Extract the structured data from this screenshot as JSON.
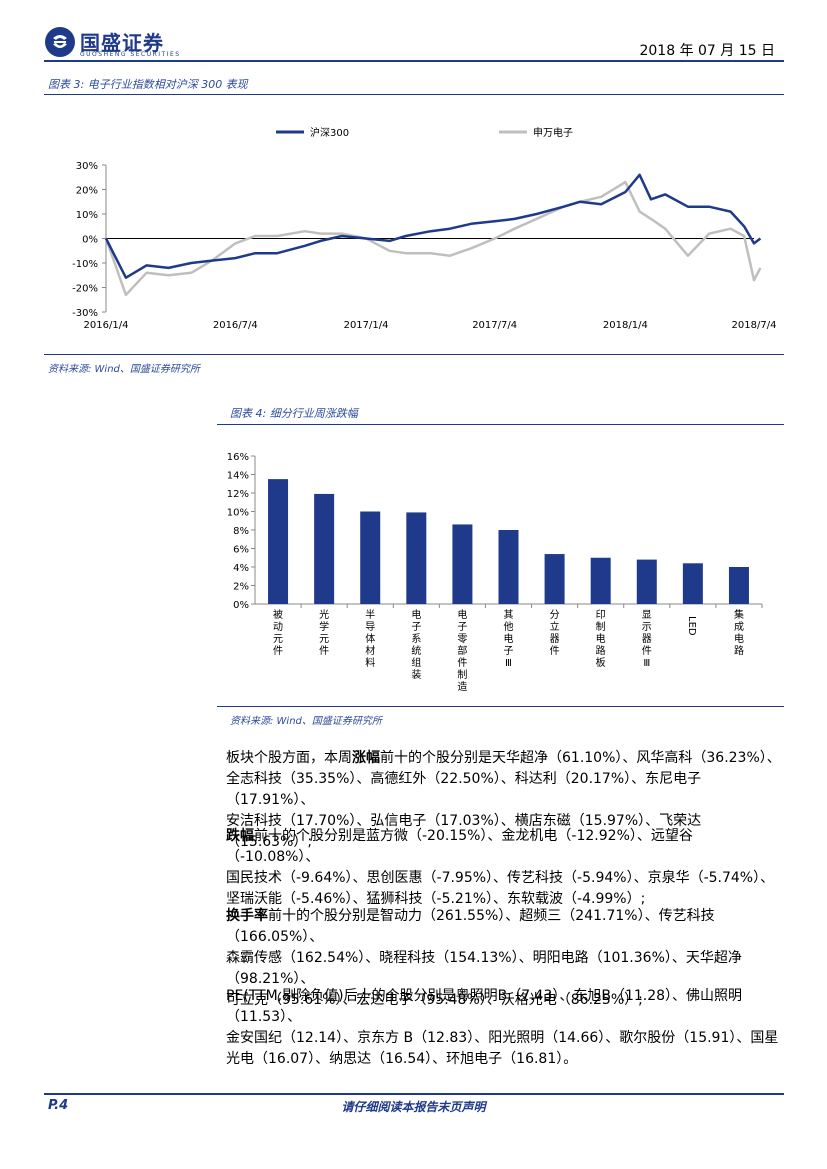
{
  "header": {
    "company_name": "国盛证券",
    "company_sub": "GUOSHENG SECURITIES",
    "date": "2018 年 07 月 15 日"
  },
  "figure3": {
    "caption": "图表 3: 电子行业指数相对沪深 300 表现",
    "source": "资料来源: Wind、国盛证券研究所"
  },
  "figure4": {
    "caption": "图表 4: 细分行业周涨跌幅",
    "source": "资料来源: Wind、国盛证券研究所"
  },
  "chart_data": [
    {
      "type": "line",
      "legend_position": "top",
      "ylim": [
        -0.3,
        0.3
      ],
      "yticks": [
        "30%",
        "20%",
        "10%",
        "0%",
        "-10%",
        "-20%",
        "-30%"
      ],
      "xticks": [
        "2016/1/4",
        "2016/7/4",
        "2017/1/4",
        "2017/7/4",
        "2018/1/4",
        "2018/7/4"
      ],
      "colors": {
        "hs300": "#1f3a8a",
        "sw": "#bfbfbf"
      },
      "series": [
        {
          "name": "沪深300",
          "x": [
            "2016/1/4",
            "2016/2/1",
            "2016/3/1",
            "2016/4/1",
            "2016/5/3",
            "2016/6/1",
            "2016/7/4",
            "2016/8/1",
            "2016/9/1",
            "2016/10/10",
            "2016/11/1",
            "2016/12/1",
            "2017/1/4",
            "2017/2/6",
            "2017/3/1",
            "2017/4/5",
            "2017/5/2",
            "2017/6/1",
            "2017/7/4",
            "2017/8/1",
            "2017/9/1",
            "2017/10/9",
            "2017/11/1",
            "2017/12/1",
            "2018/1/4",
            "2018/1/24",
            "2018/2/9",
            "2018/3/1",
            "2018/4/2",
            "2018/5/2",
            "2018/6/1",
            "2018/6/20",
            "2018/7/4",
            "2018/7/13"
          ],
          "values": [
            0.0,
            -0.16,
            -0.11,
            -0.12,
            -0.1,
            -0.09,
            -0.08,
            -0.06,
            -0.06,
            -0.03,
            -0.01,
            0.01,
            0.0,
            -0.01,
            0.01,
            0.03,
            0.04,
            0.06,
            0.07,
            0.08,
            0.1,
            0.13,
            0.15,
            0.14,
            0.19,
            0.26,
            0.16,
            0.18,
            0.13,
            0.13,
            0.11,
            0.05,
            -0.02,
            0.0
          ]
        },
        {
          "name": "申万电子",
          "x": [
            "2016/1/4",
            "2016/2/1",
            "2016/3/1",
            "2016/4/1",
            "2016/5/3",
            "2016/6/1",
            "2016/7/4",
            "2016/8/1",
            "2016/9/1",
            "2016/10/10",
            "2016/11/1",
            "2016/12/1",
            "2017/1/4",
            "2017/2/6",
            "2017/3/1",
            "2017/4/5",
            "2017/5/2",
            "2017/6/1",
            "2017/7/4",
            "2017/8/1",
            "2017/9/1",
            "2017/10/9",
            "2017/11/1",
            "2017/12/1",
            "2018/1/4",
            "2018/1/24",
            "2018/2/9",
            "2018/3/1",
            "2018/4/2",
            "2018/5/2",
            "2018/6/1",
            "2018/6/20",
            "2018/7/4",
            "2018/7/13"
          ],
          "values": [
            0.0,
            -0.23,
            -0.14,
            -0.15,
            -0.14,
            -0.09,
            -0.02,
            0.01,
            0.01,
            0.03,
            0.02,
            0.02,
            0.0,
            -0.05,
            -0.06,
            -0.06,
            -0.07,
            -0.04,
            0.0,
            0.04,
            0.08,
            0.13,
            0.15,
            0.17,
            0.23,
            0.11,
            0.08,
            0.04,
            -0.07,
            0.02,
            0.04,
            0.01,
            -0.17,
            -0.12
          ]
        }
      ]
    },
    {
      "type": "bar",
      "ylim": [
        0,
        0.16
      ],
      "yticks": [
        "16%",
        "14%",
        "12%",
        "10%",
        "8%",
        "6%",
        "4%",
        "2%",
        "0%"
      ],
      "color": "#1f3a8a",
      "categories": [
        "被动元件",
        "光学元件",
        "半导体材料",
        "电子系统组装",
        "电子零部件制造",
        "其他电子Ⅲ",
        "分立器件",
        "印制电路板",
        "显示器件Ⅲ",
        "LED",
        "集成电路"
      ],
      "values": [
        0.135,
        0.119,
        0.1,
        0.099,
        0.086,
        0.08,
        0.054,
        0.05,
        0.048,
        0.044,
        0.04
      ]
    }
  ],
  "paragraphs": {
    "p1_head": "板块个股方面，本周",
    "p1_bold": "涨幅",
    "p1_l1": "前十的个股分别是天华超净（61.10%）、风华高科（36.23%）、",
    "p1_l2": "全志科技（35.35%）、高德红外（22.50%）、科达利（20.17%）、东尼电子（17.91%）、",
    "p1_l3": "安洁科技（17.70%）、弘信电子（17.03%）、横店东磁（15.97%）、飞荣达（15.63%）;",
    "p2_bold": "跌幅",
    "p2_l1": "前十的个股分别是蓝方微（-20.15%）、金龙机电（-12.92%）、远望谷（-10.08%）、",
    "p2_l2": "国民技术（-9.64%）、思创医惠（-7.95%）、传艺科技（-5.94%）、京泉华（-5.74%）、",
    "p2_l3": "坚瑞沃能（-5.46%）、猛狮科技（-5.21%）、东软载波（-4.99%）;",
    "p3_bold": "换手率",
    "p3_l1": "前十的个股分别是智动力（261.55%）、超频三（241.71%）、传艺科技（166.05%）、",
    "p3_l2": "森霸传感（162.54%）、晓程科技（154.13%）、明阳电路（101.36%）、天华超净（98.21%）、",
    "p3_l3": "可立克（95.61%）、宏达电子（95.48%）、沃格光电（86.25%）;",
    "p4_l1": "PE(TTM,剔除负值)后十的个股分别是粤照明B（7.43）、东旭B（11.28）、佛山照明（11.53）、",
    "p4_l2": "金安国纪（12.14）、京东方 B（12.83）、阳光照明（14.66）、歌尔股份（15.91）、国星",
    "p4_l3": "光电（16.07）、纳思达（16.54）、环旭电子（16.81）。"
  },
  "footer": {
    "page": "P.4",
    "disclaimer": "请仔细阅读本报告末页声明"
  }
}
